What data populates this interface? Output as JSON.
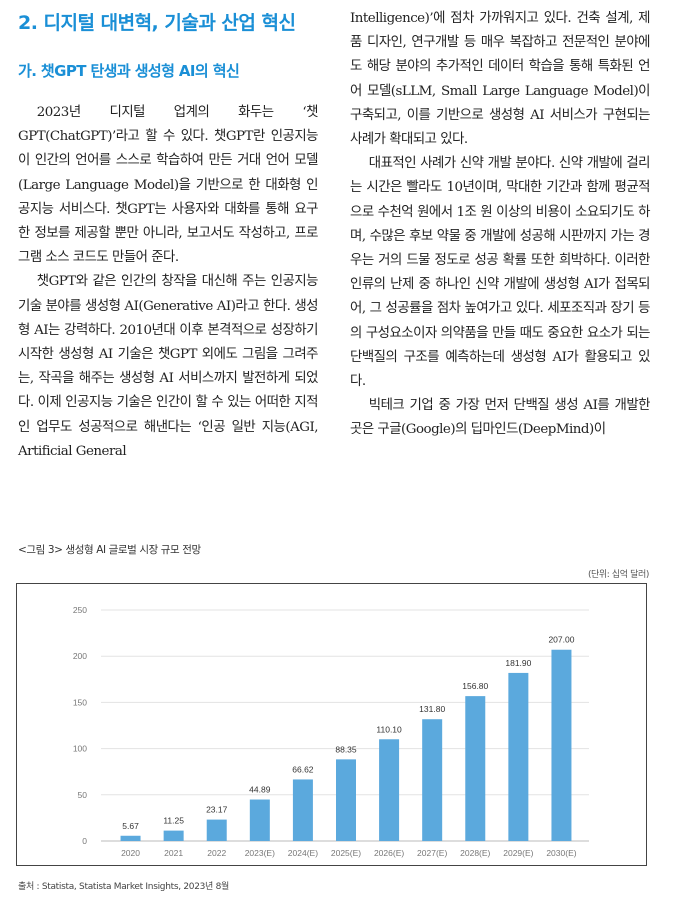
{
  "section_title": "2. 디지털 대변혁, 기술과 산업 혁신",
  "sub_title": "가. 챗GPT 탄생과 생성형 AI의 혁신",
  "left_paragraphs": [
    "2023년 디지털 업계의 화두는 ‘챗GPT(ChatGPT)’라고 할 수 있다. 챗GPT란 인공지능이 인간의 언어를 스스로 학습하여 만든 거대 언어 모델(Large Language Model)을 기반으로 한 대화형 인공지능 서비스다. 챗GPT는 사용자와 대화를 통해 요구한 정보를 제공할 뿐만 아니라, 보고서도 작성하고, 프로그램 소스 코드도 만들어 준다.",
    "챗GPT와 같은 인간의 창작을 대신해 주는 인공지능 기술 분야를 생성형 AI(Generative AI)라고 한다. 생성형 AI는 강력하다. 2010년대 이후 본격적으로 성장하기 시작한 생성형 AI 기술은 챗GPT 외에도 그림을 그려주는, 작곡을 해주는 생성형 AI 서비스까지 발전하게 되었다. 이제 인공지능 기술은 인간이 할 수 있는 어떠한 지적인 업무도 성공적으로 해낸다는 ‘인공 일반 지능(AGI, Artificial General"
  ],
  "right_paragraphs": [
    "Intelligence)’에 점차 가까워지고 있다. 건축 설계, 제품 디자인, 연구개발 등 매우 복잡하고 전문적인 분야에도 해당 분야의 추가적인 데이터 학습을 통해 특화된 언어 모델(sLLM, Small Large Language Model)이 구축되고, 이를 기반으로 생성형 AI 서비스가 구현되는 사례가 확대되고 있다.",
    "대표적인 사례가 신약 개발 분야다. 신약 개발에 걸리는 시간은 빨라도 10년이며, 막대한 기간과 함께 평균적으로 수천억 원에서 1조 원 이상의 비용이 소요되기도 하며, 수많은 후보 약물 중 개발에 성공해 시판까지 가는 경우는 거의 드물 정도로 성공 확률 또한 희박하다. 이러한 인류의 난제 중 하나인 신약 개발에 생성형 AI가 접목되어, 그 성공률을 점차 높여가고 있다. 세포조직과 장기 등의 구성요소이자 의약품을 만들 때도 중요한 요소가 되는 단백질의 구조를 예측하는데 생성형 AI가 활용되고 있다.",
    "빅테크 기업 중 가장 먼저 단백질 생성 AI를 개발한 곳은 구글(Google)의 딥마인드(DeepMind)이"
  ],
  "figure": {
    "caption": "<그림 3> 생성형 AI 글로벌 시장 규모 전망",
    "unit": "(단위: 십억 달러)",
    "source": "출처 : Statista, Statista Market Insights, 2023년 8월"
  },
  "chart_data": {
    "type": "bar",
    "categories": [
      "2020",
      "2021",
      "2022",
      "2023(E)",
      "2024(E)",
      "2025(E)",
      "2026(E)",
      "2027(E)",
      "2028(E)",
      "2029(E)",
      "2030(E)"
    ],
    "values": [
      5.67,
      11.25,
      23.17,
      44.89,
      66.62,
      88.35,
      110.1,
      131.8,
      156.8,
      181.9,
      207.0
    ],
    "value_labels": [
      "5.67",
      "11.25",
      "23.17",
      "44.89",
      "66.62",
      "88.35",
      "110.10",
      "131.80",
      "156.80",
      "181.90",
      "207.00"
    ],
    "yticks": [
      "0",
      "50",
      "100",
      "150",
      "200",
      "250"
    ],
    "ylim": [
      0,
      250
    ],
    "grid": true,
    "bar_color": "#5ba9dd",
    "title": "",
    "xlabel": "",
    "ylabel": ""
  }
}
